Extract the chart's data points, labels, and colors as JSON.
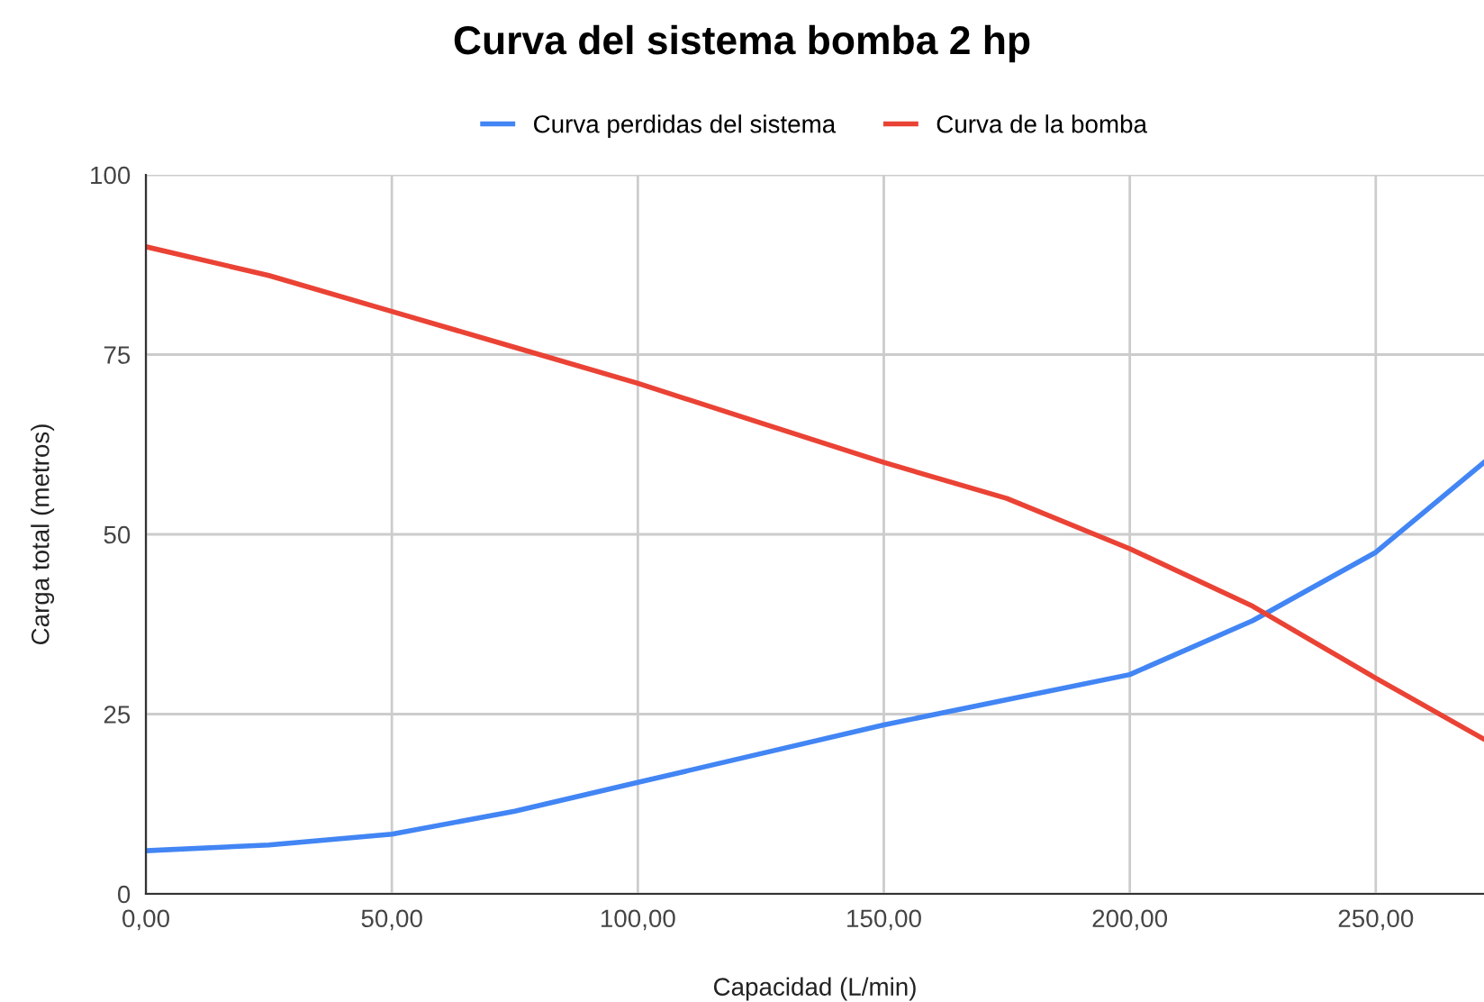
{
  "chart_data": {
    "type": "line",
    "title": "Curva del sistema bomba 2 hp",
    "xlabel": "Capacidad (L/min)",
    "ylabel": "Carga total (metros)",
    "x": [
      0,
      25,
      50,
      75,
      100,
      125,
      150,
      175,
      200,
      225,
      250,
      272
    ],
    "series": [
      {
        "name": "Curva perdidas del sistema",
        "color": "#4285f4",
        "values": [
          6,
          6.8,
          8.3,
          11.5,
          15.5,
          19.5,
          23.5,
          27,
          30.5,
          38,
          47.5,
          60
        ]
      },
      {
        "name": "Curva de la bomba",
        "color": "#ea4335",
        "values": [
          90,
          86,
          81,
          76,
          71,
          65.5,
          60,
          55,
          48,
          40,
          30,
          21.5
        ]
      }
    ],
    "xlim": [
      0,
      272
    ],
    "xticks": [
      {
        "value": 0,
        "label": "0,00"
      },
      {
        "value": 50,
        "label": "50,00"
      },
      {
        "value": 100,
        "label": "100,00"
      },
      {
        "value": 150,
        "label": "150,00"
      },
      {
        "value": 200,
        "label": "200,00"
      },
      {
        "value": 250,
        "label": "250,00"
      }
    ],
    "ylim": [
      0,
      100
    ],
    "yticks": [
      0,
      25,
      50,
      75,
      100
    ],
    "grid": true,
    "legend": "top",
    "marker": "none",
    "line_style": "solid"
  }
}
